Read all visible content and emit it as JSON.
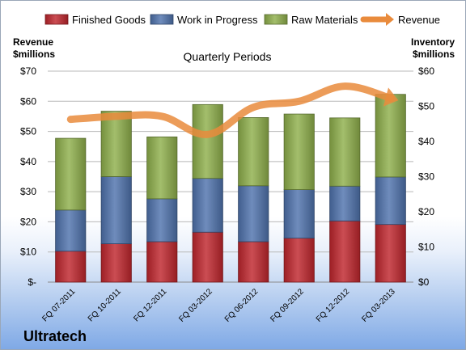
{
  "chart_data": {
    "type": "bar",
    "title": "Quarterly Periods",
    "company": "Ultratech",
    "left_axis_label": [
      "Revenue",
      "$millions"
    ],
    "right_axis_label": [
      "Inventory",
      "$millions"
    ],
    "left_ylim": [
      0,
      70
    ],
    "right_ylim": [
      0,
      60
    ],
    "left_ticks": [
      "$-",
      "$10",
      "$20",
      "$30",
      "$40",
      "$50",
      "$60",
      "$70"
    ],
    "left_tick_values": [
      0,
      10,
      20,
      30,
      40,
      50,
      60,
      70
    ],
    "right_ticks": [
      "$0",
      "$10",
      "$20",
      "$30",
      "$40",
      "$50",
      "$60"
    ],
    "right_tick_values": [
      0,
      10,
      20,
      30,
      40,
      50,
      60
    ],
    "categories": [
      "FQ 07-2011",
      "FQ 10-2011",
      "FQ 12-2011",
      "FQ 03-2012",
      "FQ 06-2012",
      "FQ 09-2012",
      "FQ 12-2012",
      "FQ 03-2013"
    ],
    "stacked": true,
    "grid": true,
    "legend_position": "top",
    "series": [
      {
        "name": "Finished Goods",
        "axis": "right",
        "color": "#c0262d",
        "values": [
          8.8,
          10.9,
          11.5,
          14.2,
          11.5,
          12.5,
          17.4,
          16.4
        ]
      },
      {
        "name": "Work in Progress",
        "axis": "right",
        "color": "#4f73ad",
        "values": [
          11.7,
          19.1,
          12.2,
          15.3,
          15.9,
          13.8,
          9.9,
          13.5
        ]
      },
      {
        "name": "Raw Materials",
        "axis": "right",
        "color": "#8fb04c",
        "values": [
          20.4,
          18.6,
          17.6,
          21.0,
          19.4,
          21.5,
          19.4,
          23.5
        ]
      },
      {
        "name": "Revenue",
        "axis": "left",
        "type": "line",
        "color": "#e98b3c",
        "values": [
          54,
          55,
          55,
          49,
          58,
          60,
          65,
          61
        ]
      }
    ]
  }
}
